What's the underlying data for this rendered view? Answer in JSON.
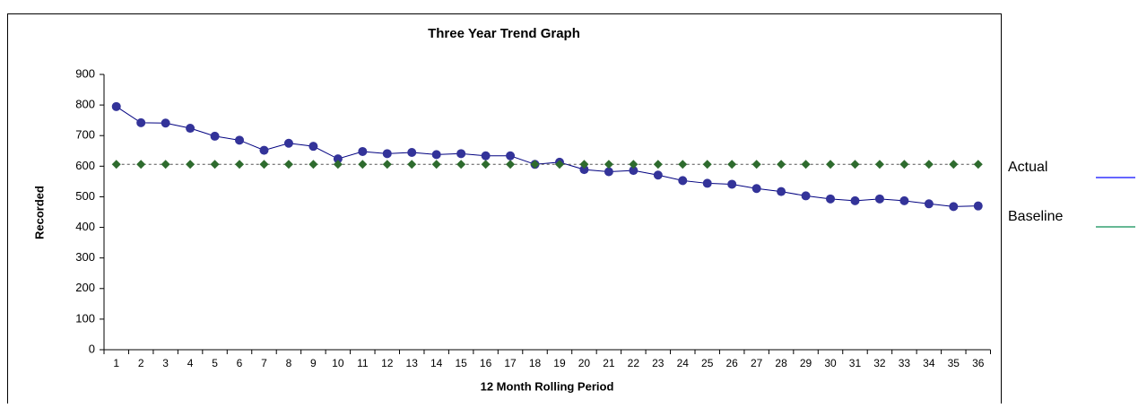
{
  "chart_data": {
    "type": "line",
    "title": "Three Year Trend Graph",
    "x_label": "12 Month Rolling Period",
    "y_label": "Recorded",
    "categories": [
      1,
      2,
      3,
      4,
      5,
      6,
      7,
      8,
      9,
      10,
      11,
      12,
      13,
      14,
      15,
      16,
      17,
      18,
      19,
      20,
      21,
      22,
      23,
      24,
      25,
      26,
      27,
      28,
      29,
      30,
      31,
      32,
      33,
      34,
      35,
      36
    ],
    "series": [
      {
        "name": "Actual",
        "color": "#333399",
        "values": [
          795,
          742,
          741,
          724,
          698,
          685,
          652,
          675,
          665,
          624,
          648,
          641,
          645,
          638,
          641,
          634,
          634,
          606,
          613,
          589,
          582,
          586,
          571,
          553,
          544,
          541,
          527,
          517,
          503,
          493,
          487,
          493,
          487,
          477,
          468,
          470
        ]
      },
      {
        "name": "Baseline",
        "color": "#2e6b2e",
        "values": [
          606,
          606,
          606,
          606,
          606,
          606,
          606,
          606,
          606,
          606,
          606,
          606,
          606,
          606,
          606,
          606,
          606,
          606,
          606,
          606,
          606,
          606,
          606,
          606,
          606,
          606,
          606,
          606,
          606,
          606,
          606,
          606,
          606,
          606,
          606,
          606
        ]
      }
    ],
    "ylim": [
      0,
      900
    ],
    "yticks": [
      0,
      100,
      200,
      300,
      400,
      500,
      600,
      700,
      800,
      900
    ]
  }
}
